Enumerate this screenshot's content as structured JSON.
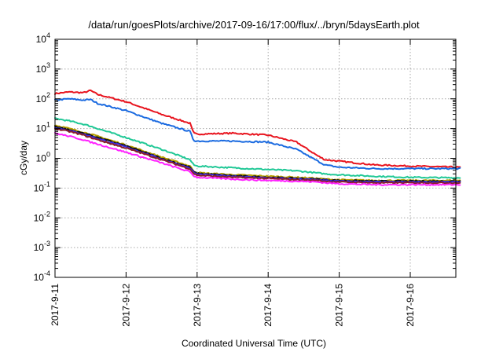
{
  "chart_data": {
    "type": "line",
    "title": "/data/run/goesPlots/archive/2017-09-16/17:00/flux/../bryn/5daysEarth.plot",
    "xlabel": "Coordinated Universal Time (UTC)",
    "ylabel": "cGy/day",
    "yscale": "log",
    "ylim": [
      0.0001,
      10000
    ],
    "xlim": [
      "2017-09-11",
      "2017-09-16 17:00"
    ],
    "x_tick_labels": [
      "2017-9-11",
      "2017-9-12",
      "2017-9-13",
      "2017-9-14",
      "2017-9-15",
      "2017-9-16"
    ],
    "y_ticks": [
      {
        "base": "10",
        "exp": "4"
      },
      {
        "base": "10",
        "exp": "3"
      },
      {
        "base": "10",
        "exp": "2"
      },
      {
        "base": "10",
        "exp": "1"
      },
      {
        "base": "10",
        "exp": "0"
      },
      {
        "base": "10",
        "exp": "-1"
      },
      {
        "base": "10",
        "exp": "-2"
      },
      {
        "base": "10",
        "exp": "-3"
      },
      {
        "base": "10",
        "exp": "-4"
      }
    ],
    "grid": true,
    "x_days": [
      0,
      0.2,
      0.4,
      0.5,
      0.6,
      1.0,
      1.5,
      1.9,
      1.95,
      2.0,
      2.5,
      3.0,
      3.4,
      3.7,
      3.8,
      4.0,
      4.5,
      5.0,
      5.7
    ],
    "series": [
      {
        "color": "#e8141e",
        "values": [
          150,
          170,
          160,
          190,
          140,
          80,
          30,
          15,
          7,
          6.5,
          7,
          6,
          3.5,
          1.2,
          0.9,
          0.8,
          0.6,
          0.55,
          0.5
        ]
      },
      {
        "color": "#1a6ae0",
        "values": [
          90,
          100,
          90,
          95,
          70,
          40,
          15,
          8,
          4,
          3.8,
          3.8,
          3.5,
          2,
          0.8,
          0.6,
          0.5,
          0.45,
          0.45,
          0.45
        ]
      },
      {
        "color": "#20c896",
        "values": [
          22,
          18,
          14,
          12,
          10,
          5,
          2,
          0.9,
          0.6,
          0.55,
          0.48,
          0.42,
          0.38,
          0.32,
          0.3,
          0.28,
          0.25,
          0.23,
          0.22
        ]
      },
      {
        "color": "#b8a000",
        "values": [
          13,
          10,
          7.5,
          6.5,
          5.5,
          2.8,
          1.1,
          0.55,
          0.37,
          0.33,
          0.28,
          0.25,
          0.23,
          0.21,
          0.2,
          0.19,
          0.18,
          0.18,
          0.18
        ]
      },
      {
        "color": "#101010",
        "values": [
          12,
          9,
          7,
          6,
          5,
          2.6,
          1.0,
          0.5,
          0.35,
          0.31,
          0.26,
          0.23,
          0.21,
          0.2,
          0.19,
          0.18,
          0.17,
          0.17,
          0.17
        ]
      },
      {
        "color": "#3b2ce0",
        "values": [
          11,
          8.5,
          6.5,
          5.5,
          4.6,
          2.4,
          0.95,
          0.47,
          0.33,
          0.29,
          0.25,
          0.22,
          0.2,
          0.19,
          0.18,
          0.17,
          0.16,
          0.16,
          0.16
        ]
      },
      {
        "color": "#8a1c2a",
        "values": [
          10,
          8,
          6,
          5,
          4.2,
          2.2,
          0.9,
          0.44,
          0.31,
          0.27,
          0.23,
          0.21,
          0.19,
          0.18,
          0.17,
          0.16,
          0.15,
          0.15,
          0.15
        ]
      },
      {
        "color": "#ff22ff",
        "values": [
          7,
          5.5,
          4.2,
          3.5,
          3,
          1.6,
          0.7,
          0.35,
          0.26,
          0.23,
          0.2,
          0.18,
          0.17,
          0.16,
          0.15,
          0.14,
          0.13,
          0.13,
          0.13
        ]
      }
    ]
  }
}
